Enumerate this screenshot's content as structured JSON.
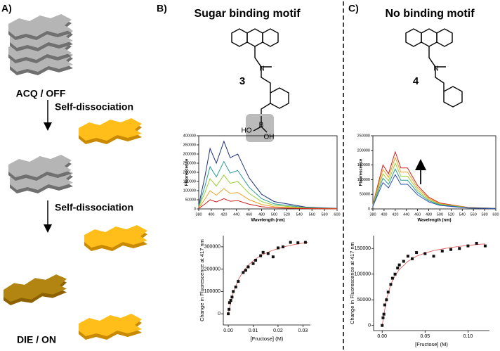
{
  "panels": {
    "a": {
      "label": "A)",
      "top_state": "ACQ / OFF",
      "step_1": "Self-dissociation",
      "step_2": "Self-dissociation",
      "bottom_state": "DIE / ON"
    },
    "b": {
      "label": "B)",
      "title": "Sugar binding motif",
      "compound": "3",
      "boronic_ho": "HO",
      "boronic_b": "B",
      "boronic_oh": "OH"
    },
    "c": {
      "label": "C)",
      "title": "No binding motif",
      "compound": "4"
    }
  },
  "chart_data": [
    {
      "type": "line",
      "xlabel": "Wavelength (nm)",
      "ylabel": "Fluorescence",
      "xlim": [
        380,
        600
      ],
      "xticks": [
        380,
        400,
        420,
        440,
        460,
        480,
        500,
        520,
        540,
        560,
        580,
        600
      ],
      "ylim": [
        0,
        400000
      ],
      "yticks": [
        0,
        50000,
        100000,
        150000,
        200000,
        250000,
        300000,
        350000,
        400000
      ],
      "x": [
        380,
        390,
        398,
        408,
        420,
        430,
        442,
        460,
        480,
        500,
        550,
        600
      ],
      "series": [
        {
          "color": "#1f2f7a",
          "values": [
            20000,
            180000,
            330000,
            250000,
            370000,
            280000,
            300000,
            170000,
            80000,
            40000,
            10000,
            3000
          ]
        },
        {
          "color": "#2a9a9a",
          "values": [
            14000,
            126000,
            231000,
            175000,
            259000,
            196000,
            210000,
            119000,
            56000,
            28000,
            7000,
            2100
          ]
        },
        {
          "color": "#9acd32",
          "values": [
            10000,
            90000,
            165000,
            125000,
            185000,
            140000,
            150000,
            85000,
            40000,
            20000,
            5000,
            1500
          ]
        },
        {
          "color": "#f0a020",
          "values": [
            6000,
            54000,
            99000,
            75000,
            111000,
            84000,
            90000,
            51000,
            24000,
            12000,
            3000,
            900
          ]
        },
        {
          "color": "#d02020",
          "values": [
            3000,
            27000,
            50000,
            38000,
            56000,
            42000,
            45000,
            26000,
            12000,
            6000,
            1500,
            500
          ]
        }
      ]
    },
    {
      "type": "line",
      "xlabel": "Wavelength (nm)",
      "ylabel": "Fluorescence",
      "xlim": [
        380,
        600
      ],
      "xticks": [
        380,
        400,
        420,
        440,
        460,
        480,
        500,
        520,
        540,
        560,
        580,
        600
      ],
      "ylim": [
        0,
        250000
      ],
      "yticks": [
        0,
        50000,
        100000,
        150000,
        200000,
        250000
      ],
      "x": [
        380,
        390,
        398,
        408,
        420,
        430,
        442,
        460,
        480,
        500,
        550,
        600
      ],
      "series": [
        {
          "color": "#d02020",
          "values": [
            15000,
            90000,
            150000,
            120000,
            195000,
            140000,
            140000,
            80000,
            40000,
            20000,
            5000,
            2000
          ]
        },
        {
          "color": "#f0a020",
          "values": [
            13500,
            81000,
            135000,
            108000,
            175500,
            126000,
            126000,
            72000,
            36000,
            18000,
            4500,
            1800
          ]
        },
        {
          "color": "#9acd32",
          "values": [
            12000,
            72000,
            120000,
            96000,
            156000,
            112000,
            112000,
            64000,
            32000,
            16000,
            4000,
            1600
          ]
        },
        {
          "color": "#2a9a9a",
          "values": [
            10500,
            63000,
            105000,
            84000,
            136500,
            98000,
            98000,
            56000,
            28000,
            14000,
            3500,
            1400
          ]
        },
        {
          "color": "#3050b0",
          "values": [
            9000,
            54000,
            90000,
            72000,
            117000,
            84000,
            84000,
            48000,
            24000,
            12000,
            3000,
            1200
          ]
        }
      ]
    },
    {
      "type": "scatter",
      "xlabel": "[Fructose] (M)",
      "ylabel": "Change in Fluorescence at 417 nm",
      "xlim": [
        -0.002,
        0.033
      ],
      "xticks": [
        {
          "value": 0,
          "label": "0.00"
        },
        0.01,
        0.02,
        0.03
      ],
      "ylim": [
        -50000,
        350000
      ],
      "yticks": [
        0,
        100000,
        200000,
        300000
      ],
      "color": "#111111",
      "x": [
        0,
        0.0003,
        0.0005,
        0.001,
        0.0015,
        0.002,
        0.003,
        0.004,
        0.006,
        0.007,
        0.008,
        0.01,
        0.011,
        0.013,
        0.014,
        0.016,
        0.018,
        0.02,
        0.022,
        0.025,
        0.028,
        0.031
      ],
      "values": [
        0,
        20000,
        50000,
        60000,
        75000,
        100000,
        120000,
        145000,
        185000,
        195000,
        210000,
        225000,
        240000,
        260000,
        275000,
        270000,
        255000,
        295000,
        300000,
        320000,
        318000,
        320000
      ],
      "fit": {
        "color": "#e06060",
        "x": [
          0,
          0.002,
          0.004,
          0.006,
          0.008,
          0.01,
          0.012,
          0.014,
          0.016,
          0.018,
          0.02,
          0.022,
          0.024,
          0.026,
          0.028,
          0.03,
          0.032
        ],
        "values": [
          0,
          95000,
          152000,
          190000,
          217000,
          237500,
          253000,
          266000,
          276000,
          285000,
          292000,
          299000,
          304000,
          309000,
          313000,
          317000,
          320000
        ]
      }
    },
    {
      "type": "scatter",
      "xlabel": "[Fructose] (M)",
      "ylabel": "Change in Fluorescence at 417 nm",
      "xlim": [
        -0.01,
        0.125
      ],
      "xticks": [
        {
          "value": 0,
          "label": "0.00"
        },
        0.05,
        {
          "value": 0.1,
          "label": "0.10"
        }
      ],
      "ylim": [
        -10000,
        175000
      ],
      "yticks": [
        0,
        50000,
        100000,
        150000
      ],
      "color": "#111111",
      "x": [
        0,
        0.001,
        0.002,
        0.003,
        0.005,
        0.007,
        0.01,
        0.012,
        0.015,
        0.018,
        0.02,
        0.025,
        0.03,
        0.035,
        0.04,
        0.05,
        0.06,
        0.07,
        0.08,
        0.09,
        0.1,
        0.11,
        0.12
      ],
      "values": [
        0,
        15000,
        22000,
        40000,
        50000,
        65000,
        80000,
        92000,
        100000,
        112000,
        118000,
        125000,
        135000,
        130000,
        142000,
        140000,
        135000,
        145000,
        148000,
        150000,
        155000,
        160000,
        155000
      ],
      "fit": {
        "color": "#e06060",
        "x": [
          0,
          0.005,
          0.01,
          0.015,
          0.02,
          0.03,
          0.04,
          0.05,
          0.06,
          0.08,
          0.1,
          0.12
        ],
        "values": [
          0,
          51000,
          80000,
          97000,
          109000,
          125000,
          135000,
          141000,
          146000,
          152000,
          156000,
          159000
        ]
      }
    }
  ]
}
